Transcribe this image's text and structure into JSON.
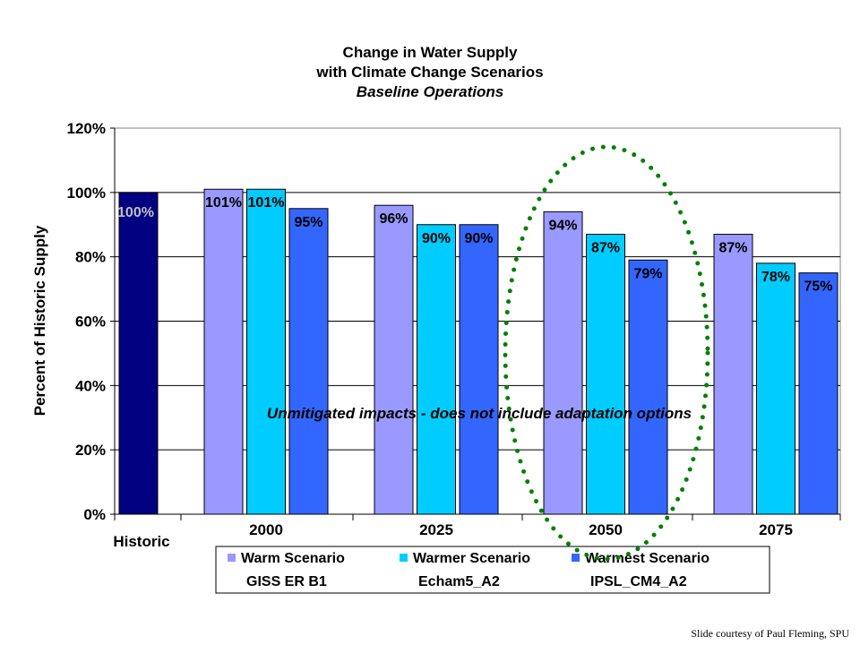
{
  "chart_data": {
    "type": "bar",
    "title": "Change in Water Supply",
    "subtitle": "with Climate Change Scenarios",
    "subtitle2": "Baseline Operations",
    "ylabel": "Percent of Historic Supply",
    "xlabel": "",
    "ylim": [
      0,
      120
    ],
    "yticks": [
      "0%",
      "20%",
      "40%",
      "60%",
      "80%",
      "100%",
      "120%"
    ],
    "historic": {
      "label": "Historic",
      "value": 100,
      "data_label": "100%",
      "color": "#000080"
    },
    "categories": [
      "2000",
      "2025",
      "2050",
      "2075"
    ],
    "series": [
      {
        "name": "Warm Scenario",
        "model": "GISS ER B1",
        "color": "#9999FF",
        "values": [
          101,
          96,
          94,
          87
        ],
        "labels": [
          "101%",
          "96%",
          "94%",
          "87%"
        ]
      },
      {
        "name": "Warmer Scenario",
        "model": "Echam5_A2",
        "color": "#00CCFF",
        "values": [
          101,
          90,
          87,
          78
        ],
        "labels": [
          "101%",
          "90%",
          "87%",
          "78%"
        ]
      },
      {
        "name": "Warmest Scenario",
        "model": "IPSL_CM4_A2",
        "color": "#3366FF",
        "values": [
          95,
          90,
          79,
          75
        ],
        "labels": [
          "95%",
          "90%",
          "79%",
          "75%"
        ]
      }
    ],
    "annotation": "Unmitigated impacts - does not include adaptation options",
    "highlight_category": "2050",
    "highlight_color": "#008000",
    "grid": true,
    "legend_position": "bottom"
  },
  "credit": "Slide courtesy of Paul Fleming, SPU"
}
